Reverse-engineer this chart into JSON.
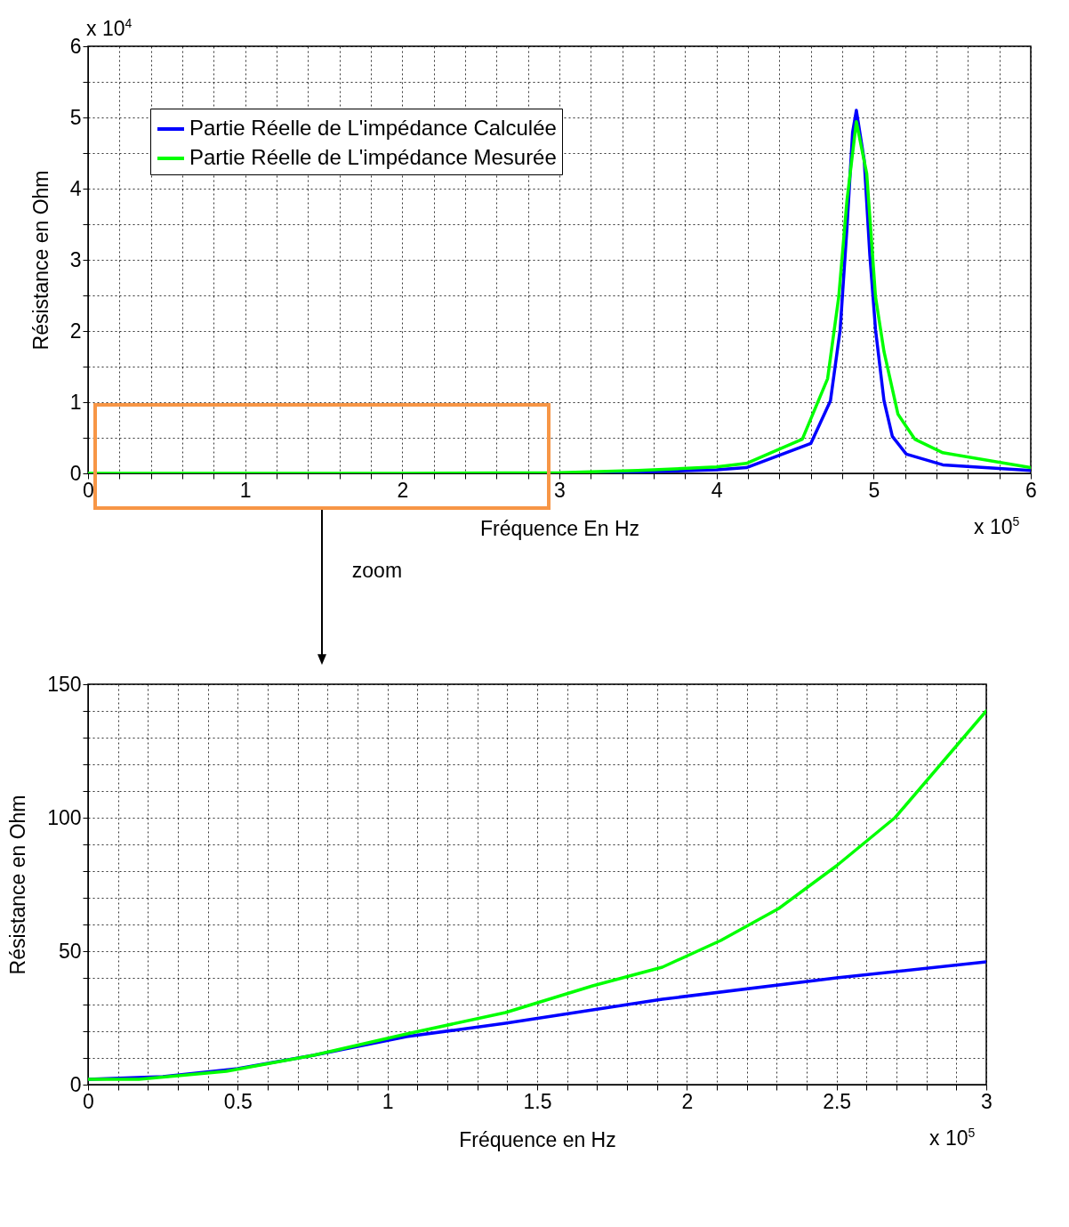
{
  "chart_data": [
    {
      "type": "line",
      "xlabel": "Fréquence En Hz",
      "ylabel": "Résistance en Ohm",
      "annotations": [
        "x 10$^{4}$",
        "x 10$^{5}$",
        "zoom"
      ],
      "xlim": [
        0,
        6
      ],
      "ylim": [
        0,
        6
      ],
      "xticks": [
        0,
        {
          "value": 0.2,
          "label": null
        },
        {
          "value": 0.4,
          "label": null
        },
        {
          "value": 0.6,
          "label": null
        },
        {
          "value": 0.8,
          "label": null
        },
        1,
        {
          "value": 1.2,
          "label": null
        },
        {
          "value": 1.4,
          "label": null
        },
        {
          "value": 1.6,
          "label": null
        },
        {
          "value": 1.8,
          "label": null
        },
        2,
        {
          "value": 2.2,
          "label": null
        },
        {
          "value": 2.4,
          "label": null
        },
        {
          "value": 2.6,
          "label": null
        },
        {
          "value": 2.8,
          "label": null
        },
        3,
        {
          "value": 3.2,
          "label": null
        },
        {
          "value": 3.4,
          "label": null
        },
        {
          "value": 3.6,
          "label": null
        },
        {
          "value": 3.8,
          "label": null
        },
        4,
        {
          "value": 4.2,
          "label": null
        },
        {
          "value": 4.4,
          "label": null
        },
        {
          "value": 4.6,
          "label": null
        },
        {
          "value": 4.8,
          "label": null
        },
        5,
        {
          "value": 5.2,
          "label": null
        },
        {
          "value": 5.4,
          "label": null
        },
        {
          "value": 5.6,
          "label": null
        },
        {
          "value": 5.8,
          "label": null
        },
        6
      ],
      "yticks": [
        0,
        {
          "value": 0.5,
          "label": null
        },
        1,
        {
          "value": 1.5,
          "label": null
        },
        2,
        {
          "value": 2.5,
          "label": null
        },
        3,
        {
          "value": 3.5,
          "label": null
        },
        4,
        {
          "value": 4.5,
          "label": null
        },
        5,
        {
          "value": 5.5,
          "label": null
        },
        6
      ],
      "grid": true,
      "legend": "top left",
      "line_style": "solid",
      "marker": "none",
      "series": [
        {
          "name": "Partie Réelle de L'impédance Calculée",
          "color": "#0000ff",
          "x": [
            3,
            3.5,
            4,
            4.19,
            4.6,
            4.725,
            4.787,
            4.83,
            4.866,
            4.89,
            4.94,
            4.976,
            5.012,
            5.066,
            5.119,
            5.208,
            5.44,
            6
          ],
          "values": [
            0,
            0.02,
            0.05,
            0.08,
            0.42,
            1.02,
            2.02,
            3.44,
            4.79,
            5.1,
            4.4,
            3.06,
            2.02,
            1.02,
            0.52,
            0.27,
            0.12,
            0.04
          ]
        },
        {
          "name": "Partie Réelle de L'impédance Mesurée",
          "color": "#00ff00",
          "x": [
            0,
            1,
            2,
            3,
            3.5,
            4,
            4.19,
            4.546,
            4.707,
            4.778,
            4.83,
            4.89,
            4.956,
            5.012,
            5.066,
            5.155,
            5.262,
            5.44,
            6
          ],
          "values": [
            0,
            0,
            0,
            0.01,
            0.04,
            0.09,
            0.14,
            0.48,
            1.33,
            2.48,
            3.83,
            4.94,
            4.21,
            2.48,
            1.71,
            0.83,
            0.48,
            0.29,
            0.08
          ]
        }
      ]
    },
    {
      "type": "line",
      "xlabel": "Fréquence en Hz",
      "ylabel": "Résistance en Ohm",
      "annotations": [
        "x 10$^{5}$"
      ],
      "xlim": [
        0,
        3
      ],
      "ylim": [
        0,
        150
      ],
      "xticks": [
        0,
        {
          "value": 0.1,
          "label": null
        },
        {
          "value": 0.2,
          "label": null
        },
        {
          "value": 0.3,
          "label": null
        },
        {
          "value": 0.4,
          "label": null
        },
        0.5,
        {
          "value": 0.6,
          "label": null
        },
        {
          "value": 0.7,
          "label": null
        },
        {
          "value": 0.8,
          "label": null
        },
        {
          "value": 0.9,
          "label": null
        },
        1,
        {
          "value": 1.1,
          "label": null
        },
        {
          "value": 1.2,
          "label": null
        },
        {
          "value": 1.3,
          "label": null
        },
        {
          "value": 1.4,
          "label": null
        },
        1.5,
        {
          "value": 1.6,
          "label": null
        },
        {
          "value": 1.7,
          "label": null
        },
        {
          "value": 1.8,
          "label": null
        },
        {
          "value": 1.9,
          "label": null
        },
        2,
        {
          "value": 2.1,
          "label": null
        },
        {
          "value": 2.2,
          "label": null
        },
        {
          "value": 2.3,
          "label": null
        },
        {
          "value": 2.4,
          "label": null
        },
        2.5,
        {
          "value": 2.6,
          "label": null
        },
        {
          "value": 2.7,
          "label": null
        },
        {
          "value": 2.8,
          "label": null
        },
        {
          "value": 2.9,
          "label": null
        },
        3
      ],
      "yticks": [
        0,
        {
          "value": 10,
          "label": null
        },
        {
          "value": 20,
          "label": null
        },
        {
          "value": 30,
          "label": null
        },
        {
          "value": 40,
          "label": null
        },
        50,
        {
          "value": 60,
          "label": null
        },
        {
          "value": 70,
          "label": null
        },
        {
          "value": 80,
          "label": null
        },
        {
          "value": 90,
          "label": null
        },
        100,
        {
          "value": 110,
          "label": null
        },
        {
          "value": 120,
          "label": null
        },
        {
          "value": 130,
          "label": null
        },
        {
          "value": 140,
          "label": null
        },
        150
      ],
      "grid": true,
      "legend": "top left",
      "line_style": "solid",
      "marker": "none",
      "series": [
        {
          "name": "Partie Réelle de L'impédance Calculée",
          "color": "#0000ff",
          "x": [
            0,
            0.25,
            0.5,
            0.753,
            1.064,
            1.394,
            1.918,
            2.5,
            3
          ],
          "values": [
            2,
            3,
            6,
            11,
            18,
            23,
            32,
            40,
            46
          ]
        },
        {
          "name": "Partie Réelle de L'impédance Mesurée",
          "color": "#00ff00",
          "x": [
            0,
            0.17,
            0.462,
            0.753,
            1.064,
            1.394,
            1.685,
            1.918,
            2.113,
            2.307,
            2.5,
            2.695,
            3
          ],
          "values": [
            2,
            2,
            5,
            11,
            19,
            27,
            37,
            44,
            54,
            66,
            82,
            100,
            140
          ]
        }
      ]
    }
  ]
}
